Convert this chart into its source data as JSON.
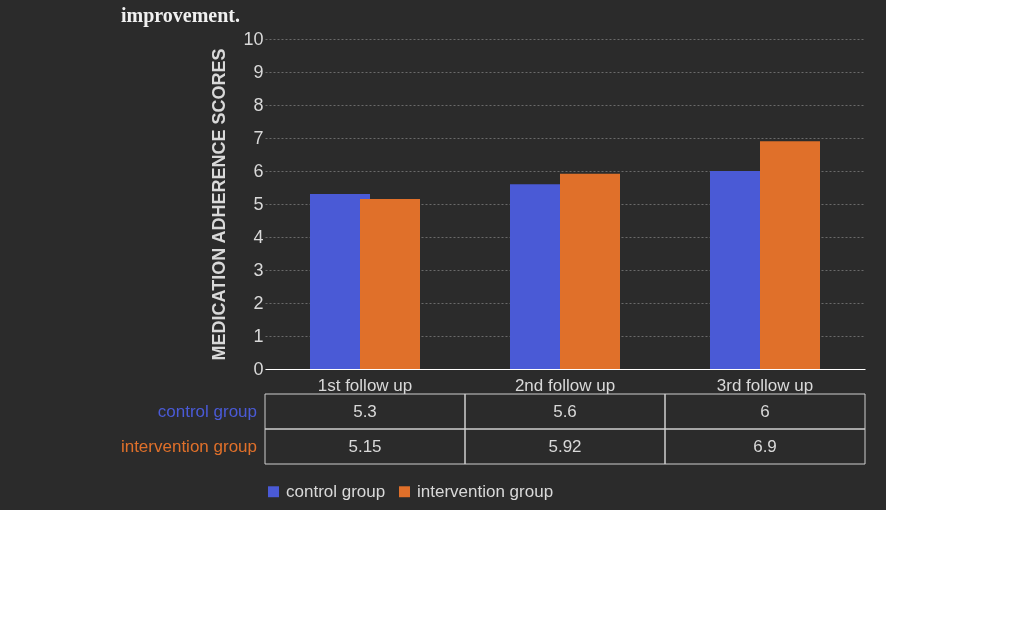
{
  "chart_data": {
    "type": "bar",
    "title": "improvement.",
    "ylabel": "MEDICATION ADHERENCE  SCORES",
    "categories": [
      "1st follow up",
      "2nd follow up",
      "3rd follow up"
    ],
    "series": [
      {
        "name": "control group",
        "color": "#4a5ad6",
        "values": [
          5.3,
          5.6,
          6
        ]
      },
      {
        "name": "intervention group",
        "color": "#e0702a",
        "values": [
          5.15,
          5.92,
          6.9
        ]
      }
    ],
    "ylim": [
      0,
      10
    ],
    "yticks": [
      0,
      1,
      2,
      3,
      4,
      5,
      6,
      7,
      8,
      9,
      10
    ],
    "grid": "y",
    "legend": "bottom",
    "data_labels": true
  }
}
